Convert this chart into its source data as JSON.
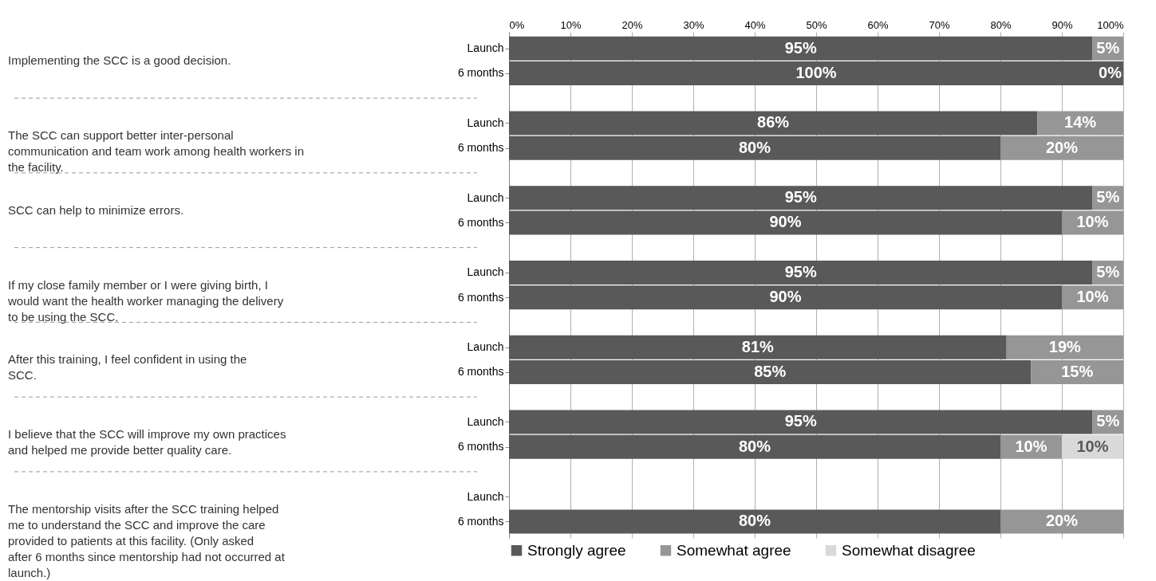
{
  "chart_data": {
    "type": "bar",
    "orientation": "horizontal",
    "stacked": true,
    "categories": [
      "Launch",
      "6 months",
      "Launch",
      "6 months",
      "Launch",
      "6 months",
      "Launch",
      "6 months",
      "Launch",
      "6 months",
      "Launch",
      "6 months",
      "Launch",
      "6 months"
    ],
    "series": [
      {
        "name": "Strongly agree",
        "color": "#595959",
        "values": [
          95,
          100,
          86,
          80,
          95,
          90,
          95,
          90,
          81,
          85,
          95,
          80,
          null,
          80
        ],
        "value_labels": [
          "95%",
          "100%",
          "86%",
          "80%",
          "95%",
          "90%",
          "95%",
          "90%",
          "81%",
          "85%",
          "95%",
          "80%",
          null,
          "80%"
        ]
      },
      {
        "name": "Somewhat agree",
        "color": "#969696",
        "values": [
          5,
          0,
          14,
          20,
          5,
          10,
          5,
          10,
          19,
          15,
          5,
          10,
          null,
          20
        ],
        "value_labels": [
          "5%",
          "0%",
          "14%",
          "20%",
          "5%",
          "10%",
          "5%",
          "10%",
          "19%",
          "15%",
          "5%",
          "10%",
          null,
          "20%"
        ]
      },
      {
        "name": "Somewhat disagree",
        "color": "#d9d9d9",
        "values": [
          null,
          null,
          null,
          null,
          null,
          null,
          null,
          null,
          null,
          null,
          null,
          10,
          null,
          null
        ],
        "value_labels": [
          null,
          null,
          null,
          null,
          null,
          null,
          null,
          null,
          null,
          null,
          null,
          "10%",
          null,
          null
        ]
      }
    ],
    "xlim": [
      0,
      100
    ],
    "xticks": [
      {
        "value": 0,
        "label": "0%"
      },
      {
        "value": 10,
        "label": "10%"
      },
      {
        "value": 20,
        "label": "20%"
      },
      {
        "value": 30,
        "label": "30%"
      },
      {
        "value": 40,
        "label": "40%"
      },
      {
        "value": 50,
        "label": "50%"
      },
      {
        "value": 60,
        "label": "60%"
      },
      {
        "value": 70,
        "label": "70%"
      },
      {
        "value": 80,
        "label": "80%"
      },
      {
        "value": 90,
        "label": "90%"
      },
      {
        "value": 100,
        "label": "100%"
      }
    ],
    "grid": "x",
    "legend": "bottom",
    "annotations": [
      "Implementing the SCC is a good decision.",
      "The SCC can support better inter-personal communication and team work among health workers in the facility.",
      "SCC can help to minimize errors.",
      "If my close family member or I were giving birth, I would want the health worker managing the delivery to be using the  SCC.",
      "After this training, I feel confident in using the SCC.",
      "I believe that the SCC will improve my own practices and helped me provide better quality care.",
      "The mentorship visits after the SCC training helped me to understand the SCC and improve the care provided to patients at this facility. (Only asked after 6 months since mentorship had not occurred at launch.)"
    ]
  }
}
